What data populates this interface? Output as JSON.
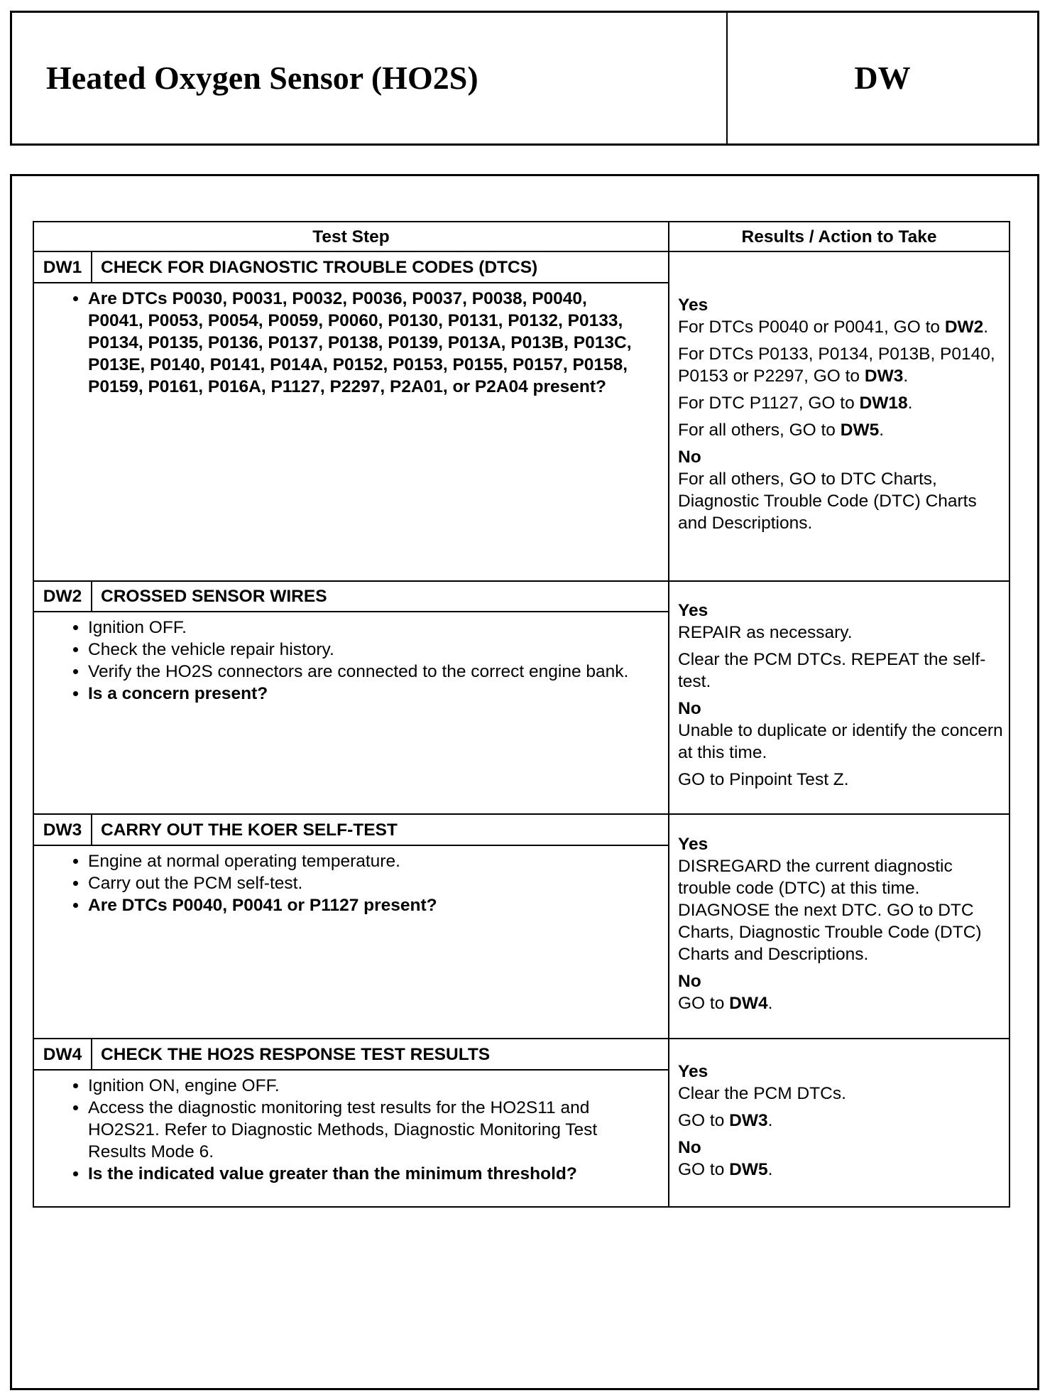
{
  "header": {
    "title": "Heated Oxygen Sensor (HO2S)",
    "code": "DW"
  },
  "table": {
    "columns": [
      "Test Step",
      "Results / Action to Take"
    ],
    "steps": [
      {
        "id": "DW1",
        "title": "CHECK FOR DIAGNOSTIC TROUBLE CODES (DTCS)",
        "bullets": [
          {
            "text": "Are DTCs P0030, P0031, P0032, P0036, P0037, P0038, P0040, P0041, P0053, P0054, P0059, P0060, P0130, P0131, P0132, P0133, P0134, P0135, P0136, P0137, P0138, P0139, P013A, P013B, P013C, P013E, P0140, P0141, P014A, P0152, P0153, P0155, P0157, P0158, P0159, P0161, P016A, P1127, P2297, P2A01, or P2A04 present?",
            "bold": true
          }
        ],
        "results": [
          {
            "label": "Yes",
            "lines": [
              [
                "For DTCs P0040 or P0041, GO to ",
                "DW2",
                "."
              ],
              [
                "For DTCs P0133, P0134, P013B, P0140, P0153 or P2297, GO to ",
                "DW3",
                "."
              ],
              [
                "For DTC P1127, GO to ",
                "DW18",
                "."
              ],
              [
                "For all others, GO to ",
                "DW5",
                "."
              ]
            ]
          },
          {
            "label": "No",
            "lines": [
              [
                "For all others, GO to DTC Charts, Diagnostic Trouble Code (DTC) Charts and Descriptions.",
                "",
                ""
              ]
            ]
          }
        ]
      },
      {
        "id": "DW2",
        "title": "CROSSED SENSOR WIRES",
        "bullets": [
          {
            "text": "Ignition OFF.",
            "bold": false
          },
          {
            "text": "Check the vehicle repair history.",
            "bold": false
          },
          {
            "text": "Verify the HO2S connectors are connected to the correct engine bank.",
            "bold": false
          },
          {
            "text": "Is a concern present?",
            "bold": true
          }
        ],
        "results": [
          {
            "label": "Yes",
            "lines": [
              [
                "REPAIR as necessary.",
                "",
                ""
              ],
              [
                "Clear the PCM DTCs. REPEAT the self-test.",
                "",
                ""
              ]
            ]
          },
          {
            "label": "No",
            "lines": [
              [
                "Unable to duplicate or identify the concern at this time.",
                "",
                ""
              ],
              [
                "GO to Pinpoint Test Z.",
                "",
                ""
              ]
            ]
          }
        ]
      },
      {
        "id": "DW3",
        "title": "CARRY OUT THE KOER SELF-TEST",
        "bullets": [
          {
            "text": "Engine at normal operating temperature.",
            "bold": false
          },
          {
            "text": "Carry out the PCM self-test.",
            "bold": false
          },
          {
            "text": "Are DTCs P0040, P0041 or P1127 present?",
            "bold": true
          }
        ],
        "results": [
          {
            "label": "Yes",
            "lines": [
              [
                "DISREGARD the current diagnostic trouble code (DTC) at this time. DIAGNOSE the next DTC.  GO to DTC Charts, Diagnostic Trouble Code (DTC) Charts and Descriptions.",
                "",
                ""
              ]
            ]
          },
          {
            "label": "No",
            "lines": [
              [
                "GO to ",
                "DW4",
                "."
              ]
            ]
          }
        ]
      },
      {
        "id": "DW4",
        "title": "CHECK THE HO2S RESPONSE TEST RESULTS",
        "bullets": [
          {
            "text": "Ignition ON, engine OFF.",
            "bold": false
          },
          {
            "text": "Access the diagnostic monitoring test results for the HO2S11 and HO2S21. Refer to Diagnostic Methods, Diagnostic Monitoring Test Results Mode 6.",
            "bold": false
          },
          {
            "text": "Is the indicated value greater than the minimum threshold?",
            "bold": true
          }
        ],
        "results": [
          {
            "label": "Yes",
            "lines": [
              [
                "Clear the PCM DTCs.",
                "",
                ""
              ],
              [
                "GO to ",
                "DW3",
                "."
              ]
            ]
          },
          {
            "label": "No",
            "lines": [
              [
                "GO to ",
                "DW5",
                "."
              ]
            ]
          }
        ]
      }
    ]
  }
}
